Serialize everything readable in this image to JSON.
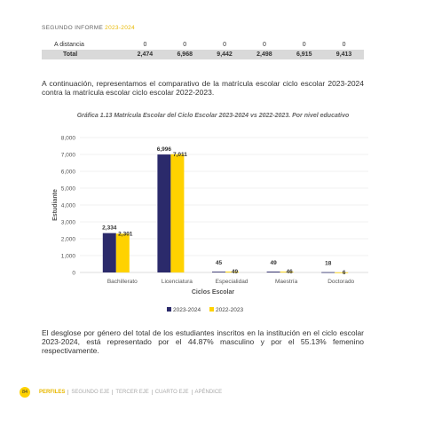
{
  "header": {
    "title": "SEGUNDO INFORME",
    "period": "2023-2024"
  },
  "table": {
    "rows": [
      [
        "A distancia",
        "0",
        "0",
        "0",
        "0",
        "0",
        "0"
      ],
      [
        "Total",
        "2,474",
        "6,968",
        "9,442",
        "2,498",
        "6,915",
        "9,413"
      ]
    ]
  },
  "paragraphs": [
    "A continuación, representamos el comparativo de la matrícula escolar ciclo escolar 2023-2024 contra la matrícula escolar ciclo escolar 2022-2023.",
    "El desglose por género del total de los estudiantes inscritos en la institución en el ciclo escolar 2023-2024, está representado por el 44.87% masculino y por el 55.13% femenino respectivamente."
  ],
  "chart_data": {
    "type": "bar",
    "title": "Gráfica 1.13 Matrícula Escolar del Ciclo Escolar 2023-2024 vs 2022-2023. Por nivel educativo",
    "categories": [
      "Bachillerato",
      "Licenciatura",
      "Especialidad",
      "Maestría",
      "Doctorado"
    ],
    "series": [
      {
        "name": "2023-2024",
        "color": "#2b2a6b",
        "values": [
          2334,
          6996,
          45,
          49,
          18
        ],
        "value_labels": [
          "2,334",
          "6,996",
          "45",
          "49",
          "18"
        ]
      },
      {
        "name": "2022-2023",
        "color": "#ffd200",
        "values": [
          2301,
          7011,
          49,
          46,
          6
        ],
        "value_labels": [
          "2,301",
          "7,011",
          "49",
          "46",
          "6"
        ]
      }
    ],
    "xlabel": "Ciclos Escolar",
    "ylabel": "Estudiante",
    "ylim": [
      0,
      8000
    ],
    "yticks": [
      0,
      {
        "value": 1000,
        "label": "1,000"
      },
      {
        "value": 2000,
        "label": "2,000"
      },
      {
        "value": 3000,
        "label": "3,000"
      },
      {
        "value": 4000,
        "label": "4,000"
      },
      {
        "value": 5000,
        "label": "5,000"
      },
      {
        "value": 6000,
        "label": "6,000"
      },
      {
        "value": 7000,
        "label": "7,000"
      },
      {
        "value": 8000,
        "label": "8,000"
      }
    ],
    "grid": true,
    "legend": "bottom"
  },
  "footer": {
    "page": "84",
    "nav": [
      "PERFILES",
      "SEGUNDO EJE",
      "TERCER EJE",
      "CUARTO EJE",
      "APÉNDICE"
    ]
  }
}
